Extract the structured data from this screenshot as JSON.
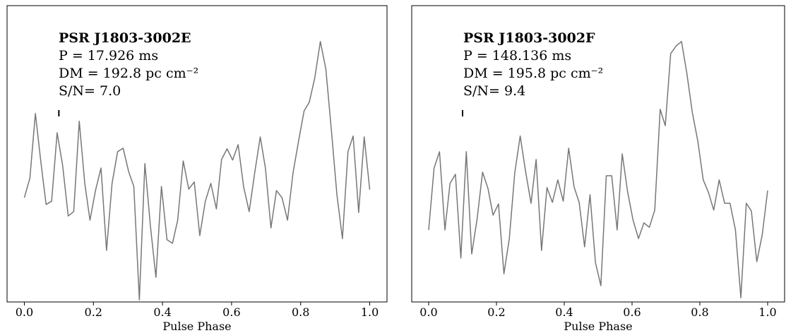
{
  "chart_data": [
    {
      "type": "line",
      "title": "PSR J1803-3002E",
      "annotations": [
        "P = 17.926 ms",
        "DM = 192.8 pc cm⁻²",
        "S/N= 7.0"
      ],
      "x_label": "Pulse Phase",
      "marker": 0.1,
      "xlim": [
        -0.05,
        1.05
      ],
      "ylim": [
        0,
        100
      ],
      "xticks": [
        {
          "value": 0,
          "label": "0.0"
        },
        0.2,
        0.4,
        0.6,
        0.8,
        {
          "value": 1,
          "label": "1.0"
        }
      ],
      "x": [
        0,
        0.016,
        0.032,
        0.048,
        0.063,
        0.079,
        0.095,
        0.111,
        0.127,
        0.143,
        0.159,
        0.175,
        0.19,
        0.206,
        0.222,
        0.238,
        0.254,
        0.27,
        0.286,
        0.302,
        0.317,
        0.333,
        0.349,
        0.365,
        0.381,
        0.397,
        0.413,
        0.429,
        0.444,
        0.46,
        0.476,
        0.492,
        0.508,
        0.524,
        0.54,
        0.556,
        0.571,
        0.587,
        0.603,
        0.619,
        0.635,
        0.651,
        0.667,
        0.683,
        0.698,
        0.714,
        0.73,
        0.746,
        0.762,
        0.778,
        0.794,
        0.81,
        0.825,
        0.841,
        0.857,
        0.873,
        0.889,
        0.905,
        0.921,
        0.937,
        0.952,
        0.968,
        0.984,
        1
      ],
      "series": [
        {
          "color": "#777777",
          "values": [
            35.2,
            41.7,
            63.6,
            47.1,
            32.9,
            34.0,
            57.1,
            46.0,
            29.0,
            30.5,
            61.0,
            40.0,
            27.6,
            37.6,
            45.2,
            17.4,
            40.0,
            50.7,
            51.9,
            44.0,
            39.0,
            0.7,
            46.7,
            25.7,
            8.3,
            39.0,
            21.0,
            19.8,
            27.6,
            47.6,
            38.1,
            40.5,
            22.4,
            34.0,
            40.0,
            31.4,
            48.1,
            51.7,
            47.9,
            53.1,
            38.8,
            30.5,
            43.6,
            55.7,
            45.2,
            25.0,
            37.6,
            35.2,
            27.6,
            43.6,
            54.3,
            64.5,
            67.4,
            75.7,
            87.9,
            78.6,
            57.9,
            36.2,
            21.4,
            50.7,
            56.0,
            30.2,
            55.7,
            37.9
          ]
        }
      ]
    },
    {
      "type": "line",
      "title": "PSR J1803-3002F",
      "annotations": [
        "P = 148.136 ms",
        "DM = 195.8 pc cm⁻²",
        "S/N= 9.4"
      ],
      "x_label": "Pulse Phase",
      "marker": 0.1,
      "xlim": [
        -0.05,
        1.05
      ],
      "ylim": [
        0,
        100
      ],
      "xticks": [
        {
          "value": 0,
          "label": "0.0"
        },
        0.2,
        0.4,
        0.6,
        0.8,
        {
          "value": 1,
          "label": "1.0"
        }
      ],
      "x": [
        0,
        0.016,
        0.032,
        0.048,
        0.063,
        0.079,
        0.095,
        0.111,
        0.127,
        0.143,
        0.159,
        0.175,
        0.19,
        0.206,
        0.222,
        0.238,
        0.254,
        0.27,
        0.286,
        0.302,
        0.317,
        0.333,
        0.349,
        0.365,
        0.381,
        0.397,
        0.413,
        0.429,
        0.444,
        0.46,
        0.476,
        0.492,
        0.508,
        0.524,
        0.54,
        0.556,
        0.571,
        0.587,
        0.603,
        0.619,
        0.635,
        0.651,
        0.667,
        0.683,
        0.698,
        0.714,
        0.73,
        0.746,
        0.762,
        0.778,
        0.794,
        0.81,
        0.825,
        0.841,
        0.857,
        0.873,
        0.889,
        0.905,
        0.921,
        0.937,
        0.952,
        0.968,
        0.984,
        1
      ],
      "series": [
        {
          "color": "#777777",
          "values": [
            24.3,
            45.2,
            50.7,
            24.3,
            40.0,
            43.1,
            14.8,
            50.7,
            16.2,
            28.1,
            43.8,
            38.3,
            29.3,
            33.1,
            9.5,
            21.4,
            43.6,
            56.0,
            44.0,
            33.3,
            48.1,
            17.4,
            38.6,
            33.6,
            41.2,
            34.0,
            51.9,
            38.8,
            33.6,
            18.6,
            36.2,
            13.3,
            5.5,
            42.6,
            42.6,
            24.3,
            50.0,
            37.1,
            27.6,
            21.4,
            26.7,
            25.2,
            31.0,
            65.0,
            59.5,
            83.8,
            86.4,
            87.9,
            76.9,
            63.8,
            54.3,
            41.2,
            37.1,
            31.0,
            41.2,
            33.3,
            33.3,
            24.3,
            1.4,
            33.3,
            30.7,
            13.6,
            22.6,
            37.6
          ]
        }
      ]
    }
  ]
}
